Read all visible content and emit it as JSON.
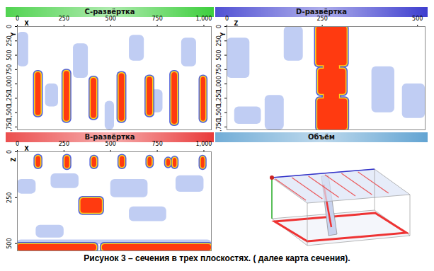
{
  "caption": "Рисунок 3 – сечения в трех плоскостях. ( далее карта сечения).",
  "chart_data": [
    {
      "type": "heatmap",
      "title": "C-развёртка",
      "color": "#33cc33",
      "x_label": "X",
      "y_label": "Y",
      "xlim": [
        0,
        1040
      ],
      "xticks": [
        0,
        250,
        500,
        750,
        1000
      ],
      "ylim": [
        0,
        1800
      ],
      "yticks": [
        0,
        250,
        500,
        750,
        1000,
        1250,
        1500,
        1750
      ],
      "cool_zones": [
        [
          0,
          60,
          100,
          700
        ],
        [
          300,
          380,
          300,
          900
        ],
        [
          600,
          680,
          150,
          600
        ],
        [
          880,
          960,
          200,
          700
        ],
        [
          150,
          220,
          1000,
          1400
        ],
        [
          470,
          520,
          1300,
          1800
        ],
        [
          700,
          780,
          1100,
          1500
        ]
      ],
      "hot_spots": [
        [
          97,
          127,
          800,
          1550
        ],
        [
          250,
          280,
          780,
          1650
        ],
        [
          395,
          425,
          900,
          1600
        ],
        [
          545,
          575,
          820,
          1650
        ],
        [
          695,
          725,
          880,
          1550
        ],
        [
          828,
          858,
          800,
          1700
        ],
        [
          985,
          1010,
          880,
          1650
        ]
      ]
    },
    {
      "type": "heatmap",
      "title": "D-развёртка",
      "color": "#3333cc",
      "x_label": "Z",
      "y_label": "Y",
      "xlim": [
        0,
        520
      ],
      "xticks": [
        0,
        250,
        500
      ],
      "ylim": [
        0,
        1800
      ],
      "yticks": [
        0,
        250,
        500,
        750,
        1000,
        1250,
        1500,
        1750
      ],
      "cool_zones": [
        [
          0,
          60,
          200,
          900
        ],
        [
          150,
          200,
          0,
          600
        ],
        [
          380,
          440,
          700,
          1500
        ],
        [
          100,
          150,
          1200,
          1800
        ],
        [
          460,
          520,
          1000,
          1600
        ],
        [
          20,
          90,
          1400,
          1700
        ]
      ],
      "hot_spots": [
        [
          235,
          315,
          0,
          680
        ],
        [
          255,
          295,
          650,
          1300
        ],
        [
          240,
          312,
          740,
          1180
        ],
        [
          238,
          316,
          1260,
          1800
        ]
      ]
    },
    {
      "type": "heatmap",
      "title": "B-развёртка",
      "color": "#e83030",
      "x_label": "X",
      "y_label": "Z",
      "xlim": [
        0,
        1040
      ],
      "xticks": [
        0,
        250,
        500,
        750,
        1000
      ],
      "ylim": [
        0,
        540
      ],
      "yticks": [
        0,
        250,
        500
      ],
      "cool_zones": [
        [
          0,
          100,
          150,
          230
        ],
        [
          180,
          330,
          120,
          200
        ],
        [
          500,
          700,
          150,
          250
        ],
        [
          850,
          1000,
          130,
          220
        ],
        [
          600,
          800,
          300,
          380
        ],
        [
          100,
          250,
          400,
          470
        ],
        [
          0,
          1040,
          480,
          505
        ]
      ],
      "hot_spots": [
        [
          100,
          125,
          25,
          85
        ],
        [
          255,
          280,
          25,
          90
        ],
        [
          400,
          425,
          30,
          85
        ],
        [
          550,
          575,
          25,
          85
        ],
        [
          700,
          722,
          30,
          80
        ],
        [
          800,
          820,
          40,
          80
        ],
        [
          835,
          855,
          35,
          85
        ],
        [
          985,
          1005,
          30,
          90
        ],
        [
          340,
          455,
          255,
          335
        ],
        [
          0,
          425,
          505,
          540
        ],
        [
          455,
          1040,
          505,
          540
        ]
      ]
    },
    {
      "type": "volume",
      "title": "Объём",
      "color": "#5a9fd0"
    }
  ]
}
